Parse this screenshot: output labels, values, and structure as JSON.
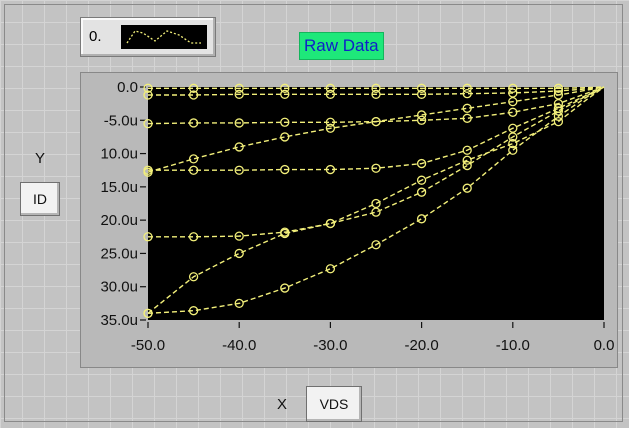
{
  "index_display": {
    "value": "0."
  },
  "title": "Raw Data",
  "y_axis": {
    "caption": "Y",
    "selector_value": "ID"
  },
  "x_axis": {
    "caption": "X",
    "selector_value": "VDS"
  },
  "colors": {
    "plot_background": "#000000",
    "trace": "#f2ef7a",
    "title_bg": "#1ee87a",
    "title_text": "#1020c8"
  },
  "chart_data": {
    "type": "scatter",
    "style": "dashed lines with circle markers",
    "xlim": [
      -50,
      0
    ],
    "ylim": [
      -35,
      0
    ],
    "x_ticks": [
      "-50.0",
      "-40.0",
      "-30.0",
      "-20.0",
      "-10.0",
      "0.0"
    ],
    "y_ticks": [
      "0.0",
      "-5.0u",
      "10.0u",
      "15.0u",
      "20.0u",
      "25.0u",
      "30.0u",
      "35.0u"
    ],
    "series": [
      {
        "x": [
          -50,
          -45,
          -40,
          -35,
          -30,
          -25,
          -20,
          -15,
          -10,
          -5,
          -2,
          0
        ],
        "y": [
          -0.2,
          -0.2,
          -0.2,
          -0.2,
          -0.2,
          -0.2,
          -0.2,
          -0.2,
          -0.2,
          -0.2,
          -0.1,
          0
        ]
      },
      {
        "x": [
          -50,
          -45,
          -40,
          -35,
          -30,
          -25,
          -20,
          -15,
          -10,
          -5,
          -2,
          0
        ],
        "y": [
          -1.2,
          -1.2,
          -1.1,
          -1.1,
          -1.1,
          -1.1,
          -1.1,
          -1.0,
          -0.9,
          -0.6,
          -0.3,
          0
        ]
      },
      {
        "x": [
          -50,
          -45,
          -40,
          -35,
          -30,
          -25,
          -20,
          -15,
          -10,
          -5,
          -2,
          0
        ],
        "y": [
          -5.5,
          -5.4,
          -5.4,
          -5.3,
          -5.3,
          -5.2,
          -5.0,
          -4.7,
          -3.8,
          -2.5,
          -1.0,
          0
        ]
      },
      {
        "x": [
          -50,
          -45,
          -40,
          -35,
          -30,
          -25,
          -20,
          -15,
          -10,
          -5,
          -2,
          0
        ],
        "y": [
          -12.5,
          -12.5,
          -12.5,
          -12.4,
          -12.4,
          -12.2,
          -11.5,
          -9.5,
          -6.2,
          -3.2,
          -1.3,
          0
        ]
      },
      {
        "x": [
          -50,
          -45,
          -40,
          -35,
          -30,
          -25,
          -20,
          -15,
          -10,
          -5,
          -2,
          0
        ],
        "y": [
          -22.5,
          -22.5,
          -22.4,
          -21.8,
          -20.5,
          -18.8,
          -15.8,
          -11.8,
          -7.5,
          -3.6,
          -1.4,
          0
        ]
      },
      {
        "x": [
          -50,
          -45,
          -40,
          -35,
          -30,
          -25,
          -20,
          -15,
          -10,
          -5,
          -2,
          0
        ],
        "y": [
          -34.0,
          -33.6,
          -32.5,
          -30.2,
          -27.3,
          -23.7,
          -19.8,
          -15.2,
          -9.5,
          -4.4,
          -1.6,
          0
        ]
      },
      {
        "x": [
          -50,
          -45,
          -40,
          -35,
          -30,
          -25,
          -20,
          -15,
          -10,
          -5,
          -2,
          0
        ],
        "y": [
          -34.0,
          -28.5,
          -25.0,
          -22.0,
          -20.5,
          -17.5,
          -14.0,
          -11.0,
          -8.5,
          -5.2,
          -2.0,
          0
        ]
      },
      {
        "x": [
          -50,
          -45,
          -40,
          -35,
          -30,
          -25,
          -20,
          -15,
          -10,
          -5,
          -2,
          0
        ],
        "y": [
          -12.8,
          -10.8,
          -9.0,
          -7.5,
          -6.2,
          -5.2,
          -4.2,
          -3.2,
          -2.2,
          -1.2,
          -0.5,
          0
        ]
      }
    ]
  }
}
